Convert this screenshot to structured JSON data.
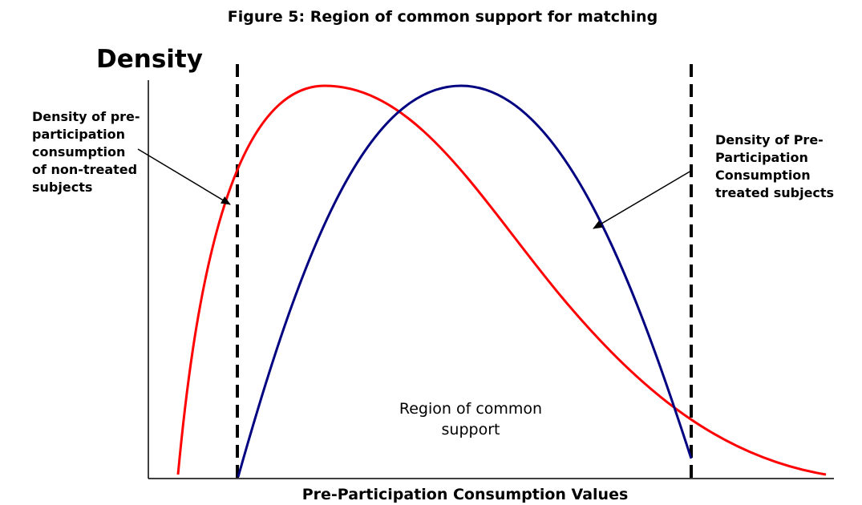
{
  "title": "Figure 5: Region of common support for matching",
  "y_axis_label": "Density",
  "x_axis_label": "Pre-Participation Consumption Values",
  "left_annotation": [
    "Density of pre-",
    "participation",
    "consumption",
    "of non-treated",
    "subjects"
  ],
  "right_annotation": [
    "Density of Pre-",
    "Participation",
    "Consumption",
    "treated subjects"
  ],
  "center_label": [
    "Region of common",
    "support"
  ]
}
